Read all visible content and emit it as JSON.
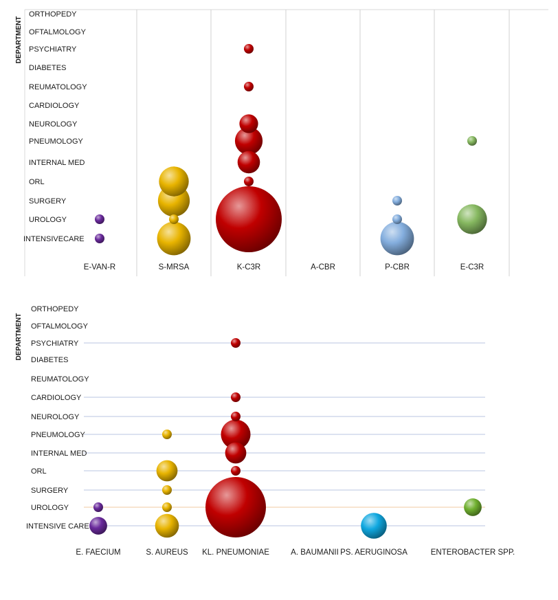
{
  "chart_data": [
    {
      "type": "scatter",
      "ylabel": "DEPARTMENT",
      "y_categories": [
        "ORTHOPEDY",
        "OFTALMOLOGY",
        "PSYCHIATRY",
        "DIABETES",
        "REUMATOLOGY",
        "CARDIOLOGY",
        "NEUROLOGY",
        "PNEUMOLOGY",
        "INTERNAL MED",
        "ORL",
        "SURGERY",
        "UROLOGY",
        "INTENSIVECARE"
      ],
      "x_categories": [
        "E-VAN-R",
        "S-MRSA",
        "K-C3R",
        "A-CBR",
        "P-CBR",
        "E-C3R"
      ],
      "colors": [
        "#6a2a9c",
        "#e8b400",
        "#c00000",
        "#888888",
        "#84aede",
        "#86b860"
      ],
      "gridlines": "vertical",
      "points": [
        {
          "x": "E-VAN-R",
          "y": "UROLOGY",
          "size": 1
        },
        {
          "x": "E-VAN-R",
          "y": "INTENSIVECARE",
          "size": 1
        },
        {
          "x": "S-MRSA",
          "y": "ORL",
          "size": 6
        },
        {
          "x": "S-MRSA",
          "y": "SURGERY",
          "size": 7
        },
        {
          "x": "S-MRSA",
          "y": "UROLOGY",
          "size": 1
        },
        {
          "x": "S-MRSA",
          "y": "INTENSIVECARE",
          "size": 8
        },
        {
          "x": "K-C3R",
          "y": "PSYCHIATRY",
          "size": 1
        },
        {
          "x": "K-C3R",
          "y": "REUMATOLOGY",
          "size": 1
        },
        {
          "x": "K-C3R",
          "y": "NEUROLOGY",
          "size": 2
        },
        {
          "x": "K-C3R",
          "y": "PNEUMOLOGY",
          "size": 5
        },
        {
          "x": "K-C3R",
          "y": "INTERNAL MED",
          "size": 3
        },
        {
          "x": "K-C3R",
          "y": "ORL",
          "size": 1
        },
        {
          "x": "K-C3R",
          "y": "UROLOGY",
          "size": 40
        },
        {
          "x": "P-CBR",
          "y": "SURGERY",
          "size": 1
        },
        {
          "x": "P-CBR",
          "y": "UROLOGY",
          "size": 1
        },
        {
          "x": "P-CBR",
          "y": "INTENSIVECARE",
          "size": 8
        },
        {
          "x": "E-C3R",
          "y": "PNEUMOLOGY",
          "size": 1
        },
        {
          "x": "E-C3R",
          "y": "UROLOGY",
          "size": 6
        }
      ]
    },
    {
      "type": "scatter",
      "ylabel": "DEPARTMENT",
      "y_categories": [
        "ORTHOPEDY",
        "OFTALMOLOGY",
        "PSYCHIATRY",
        "DIABETES",
        "REUMATOLOGY",
        "CARDIOLOGY",
        "NEUROLOGY",
        "PNEUMOLOGY",
        "INTERNAL MED",
        "ORL",
        "SURGERY",
        "UROLOGY",
        "INTENSIVE CARE"
      ],
      "x_categories": [
        "E. FAECIUM",
        "S. AUREUS",
        "KL. PNEUMONIAE",
        "A. BAUMANII",
        "PS. AERUGINOSA",
        "ENTEROBACTER SPP."
      ],
      "colors": [
        "#6a2a9c",
        "#e8b400",
        "#c00000",
        "#888888",
        "#10a8e0",
        "#70b030"
      ],
      "gridlines": "horizontal",
      "points": [
        {
          "x": "E. FAECIUM",
          "y": "UROLOGY",
          "size": 1
        },
        {
          "x": "E. FAECIUM",
          "y": "INTENSIVE CARE",
          "size": 2
        },
        {
          "x": "S. AUREUS",
          "y": "PNEUMOLOGY",
          "size": 1
        },
        {
          "x": "S. AUREUS",
          "y": "ORL",
          "size": 3
        },
        {
          "x": "S. AUREUS",
          "y": "SURGERY",
          "size": 1
        },
        {
          "x": "S. AUREUS",
          "y": "UROLOGY",
          "size": 1
        },
        {
          "x": "S. AUREUS",
          "y": "INTENSIVE CARE",
          "size": 4
        },
        {
          "x": "KL. PNEUMONIAE",
          "y": "PSYCHIATRY",
          "size": 1
        },
        {
          "x": "KL. PNEUMONIAE",
          "y": "CARDIOLOGY",
          "size": 1
        },
        {
          "x": "KL. PNEUMONIAE",
          "y": "NEUROLOGY",
          "size": 1
        },
        {
          "x": "KL. PNEUMONIAE",
          "y": "PNEUMOLOGY",
          "size": 7
        },
        {
          "x": "KL. PNEUMONIAE",
          "y": "INTERNAL MED",
          "size": 3
        },
        {
          "x": "KL. PNEUMONIAE",
          "y": "ORL",
          "size": 1
        },
        {
          "x": "KL. PNEUMONIAE",
          "y": "UROLOGY",
          "size": 40
        },
        {
          "x": "PS. AERUGINOSA",
          "y": "INTENSIVE CARE",
          "size": 5
        },
        {
          "x": "ENTEROBACTER SPP.",
          "y": "UROLOGY",
          "size": 2
        }
      ]
    }
  ]
}
